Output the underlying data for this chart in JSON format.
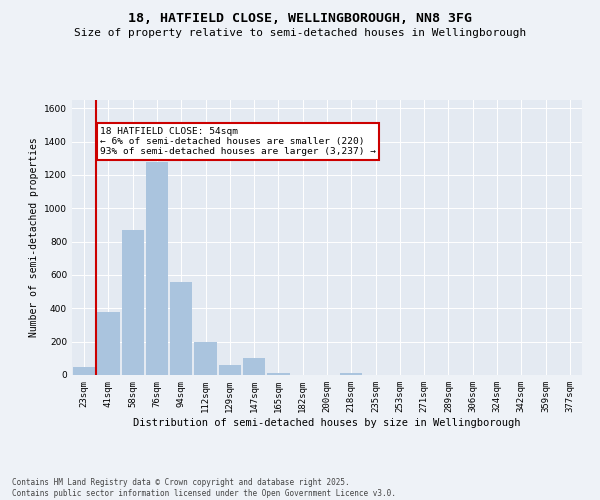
{
  "title": "18, HATFIELD CLOSE, WELLINGBOROUGH, NN8 3FG",
  "subtitle": "Size of property relative to semi-detached houses in Wellingborough",
  "xlabel": "Distribution of semi-detached houses by size in Wellingborough",
  "ylabel": "Number of semi-detached properties",
  "categories": [
    "23sqm",
    "41sqm",
    "58sqm",
    "76sqm",
    "94sqm",
    "112sqm",
    "129sqm",
    "147sqm",
    "165sqm",
    "182sqm",
    "200sqm",
    "218sqm",
    "235sqm",
    "253sqm",
    "271sqm",
    "289sqm",
    "306sqm",
    "324sqm",
    "342sqm",
    "359sqm",
    "377sqm"
  ],
  "values": [
    50,
    380,
    870,
    1280,
    560,
    200,
    60,
    100,
    10,
    0,
    0,
    10,
    0,
    0,
    0,
    0,
    0,
    0,
    0,
    0,
    0
  ],
  "bar_color": "#aac4de",
  "vline_color": "#cc0000",
  "vline_x_index": 1,
  "annotation_text": "18 HATFIELD CLOSE: 54sqm\n← 6% of semi-detached houses are smaller (220)\n93% of semi-detached houses are larger (3,237) →",
  "annotation_box_color": "#cc0000",
  "ylim": [
    0,
    1650
  ],
  "yticks": [
    0,
    200,
    400,
    600,
    800,
    1000,
    1200,
    1400,
    1600
  ],
  "bg_color": "#eef2f7",
  "plot_bg_color": "#e4eaf2",
  "grid_color": "#ffffff",
  "footer": "Contains HM Land Registry data © Crown copyright and database right 2025.\nContains public sector information licensed under the Open Government Licence v3.0.",
  "title_fontsize": 9.5,
  "subtitle_fontsize": 8.0,
  "xlabel_fontsize": 7.5,
  "ylabel_fontsize": 7.0,
  "tick_fontsize": 6.5,
  "annotation_fontsize": 6.8,
  "footer_fontsize": 5.5
}
